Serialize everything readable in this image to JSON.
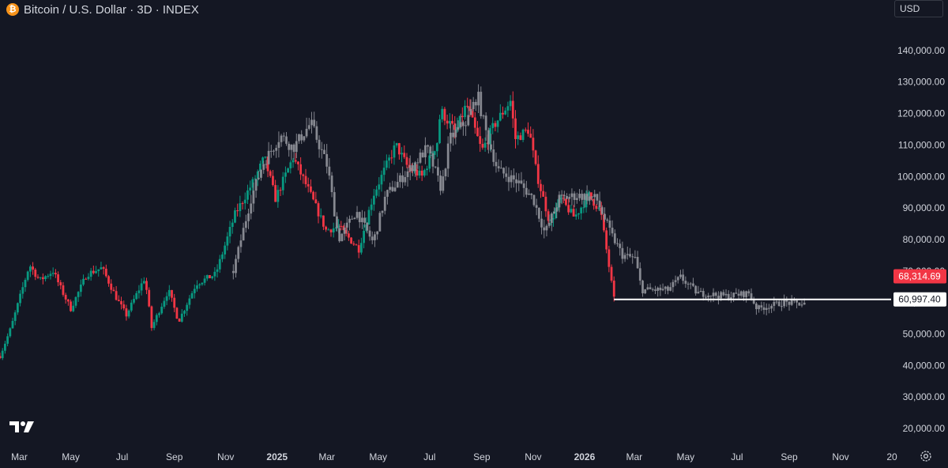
{
  "header": {
    "symbol_icon": "bitcoin-icon",
    "title": "Bitcoin / U.S. Dollar · 3D · INDEX"
  },
  "currency_selector": {
    "label": "USD"
  },
  "price_labels": {
    "current": {
      "label": "68,314.69",
      "value": 68314.69,
      "color": "#f23645"
    },
    "line": {
      "label": "60,997.40",
      "value": 60997.4,
      "color": "#ffffff"
    }
  },
  "colors": {
    "background": "#141723",
    "up": "#089981",
    "down": "#f23645",
    "overlay": "#8c8e96",
    "axis_text": "#d1d4dc"
  },
  "icons": {
    "logo": "tradingview-logo-icon",
    "settings": "gear-icon"
  },
  "chart_data": {
    "type": "candlestick",
    "title": "Bitcoin / U.S. Dollar · 3D · INDEX",
    "ylim": [
      15000,
      150000
    ],
    "y_ticks": [
      20000,
      30000,
      40000,
      50000,
      60000,
      70000,
      80000,
      90000,
      100000,
      110000,
      120000,
      130000,
      140000
    ],
    "y_tick_labels": [
      "20,000.00",
      "30,000.00",
      "40,000.00",
      "50,000.00",
      "60,000.00",
      "70,000.00",
      "80,000.00",
      "90,000.00",
      "100,000.00",
      "110,000.00",
      "120,000.00",
      "130,000.00",
      "140,000.00"
    ],
    "x_tick_labels": [
      "Mar",
      "May",
      "Jul",
      "Sep",
      "Nov",
      "2025",
      "Mar",
      "May",
      "Jul",
      "Sep",
      "Nov",
      "2026",
      "Mar",
      "May",
      "Jul",
      "Sep",
      "Nov",
      "20"
    ],
    "x_range": [
      "2024-02-07",
      "2026-12-31"
    ],
    "x_tick_dates": [
      "2024-03-01",
      "2024-05-01",
      "2024-07-01",
      "2024-09-01",
      "2024-11-01",
      "2025-01-01",
      "2025-03-01",
      "2025-05-01",
      "2025-07-01",
      "2025-09-01",
      "2025-11-01",
      "2026-01-01",
      "2026-03-01",
      "2026-05-01",
      "2026-07-01",
      "2026-09-01",
      "2026-11-01",
      "2027-01-01"
    ],
    "horizontal_line": {
      "from": "2026-02-05",
      "value": 60997.4
    },
    "series": [
      {
        "kind": "price",
        "start": "2024-02-07",
        "end": "2026-02-05",
        "points": [
          [
            "2024-02-07",
            43000
          ],
          [
            "2024-02-20",
            52000
          ],
          [
            "2024-03-13",
            72000
          ],
          [
            "2024-03-25",
            67000
          ],
          [
            "2024-04-10",
            70000
          ],
          [
            "2024-04-20",
            64000
          ],
          [
            "2024-05-01",
            58000
          ],
          [
            "2024-05-20",
            69000
          ],
          [
            "2024-06-07",
            71000
          ],
          [
            "2024-06-25",
            61000
          ],
          [
            "2024-07-06",
            56000
          ],
          [
            "2024-07-28",
            68000
          ],
          [
            "2024-08-05",
            52000
          ],
          [
            "2024-08-25",
            64000
          ],
          [
            "2024-09-06",
            54000
          ],
          [
            "2024-09-27",
            66000
          ],
          [
            "2024-10-20",
            69000
          ],
          [
            "2024-11-12",
            88000
          ],
          [
            "2024-12-05",
            99000
          ],
          [
            "2024-12-17",
            106000
          ],
          [
            "2024-12-30",
            93000
          ],
          [
            "2025-01-20",
            106000
          ],
          [
            "2025-02-05",
            97000
          ],
          [
            "2025-02-28",
            83000
          ],
          [
            "2025-03-15",
            84000
          ],
          [
            "2025-04-08",
            77000
          ],
          [
            "2025-04-25",
            94000
          ],
          [
            "2025-05-10",
            103000
          ],
          [
            "2025-05-22",
            110000
          ],
          [
            "2025-06-05",
            103000
          ],
          [
            "2025-06-22",
            100000
          ],
          [
            "2025-07-10",
            111000
          ],
          [
            "2025-07-14",
            121000
          ],
          [
            "2025-08-01",
            114000
          ],
          [
            "2025-08-14",
            123000
          ],
          [
            "2025-09-01",
            108000
          ],
          [
            "2025-09-15",
            116000
          ],
          [
            "2025-10-05",
            124000
          ],
          [
            "2025-10-11",
            112000
          ],
          [
            "2025-10-27",
            115000
          ],
          [
            "2025-11-05",
            101000
          ],
          [
            "2025-11-21",
            85000
          ],
          [
            "2025-12-03",
            93000
          ],
          [
            "2025-12-20",
            87000
          ],
          [
            "2026-01-06",
            94000
          ],
          [
            "2026-01-20",
            89000
          ],
          [
            "2026-02-05",
            61000
          ]
        ]
      },
      {
        "kind": "overlay",
        "start": "2024-11-10",
        "end": "2026-09-20",
        "points": [
          [
            "2024-11-10",
            70000
          ],
          [
            "2024-12-01",
            93000
          ],
          [
            "2024-12-15",
            104000
          ],
          [
            "2025-01-05",
            113000
          ],
          [
            "2025-01-20",
            109000
          ],
          [
            "2025-02-10",
            117000
          ],
          [
            "2025-03-02",
            103000
          ],
          [
            "2025-03-15",
            80000
          ],
          [
            "2025-04-05",
            89000
          ],
          [
            "2025-04-25",
            79000
          ],
          [
            "2025-05-10",
            94000
          ],
          [
            "2025-06-10",
            103000
          ],
          [
            "2025-06-28",
            109000
          ],
          [
            "2025-07-15",
            96000
          ],
          [
            "2025-07-25",
            112000
          ],
          [
            "2025-08-15",
            118000
          ],
          [
            "2025-08-27",
            126000
          ],
          [
            "2025-09-05",
            115000
          ],
          [
            "2025-09-20",
            102000
          ],
          [
            "2025-10-15",
            98000
          ],
          [
            "2025-11-01",
            93000
          ],
          [
            "2025-11-15",
            82000
          ],
          [
            "2025-12-02",
            93000
          ],
          [
            "2025-12-25",
            94000
          ],
          [
            "2026-01-15",
            93000
          ],
          [
            "2026-02-01",
            82000
          ],
          [
            "2026-02-15",
            75000
          ],
          [
            "2026-03-02",
            74000
          ],
          [
            "2026-03-10",
            64000
          ],
          [
            "2026-04-10",
            64000
          ],
          [
            "2026-04-25",
            68000
          ],
          [
            "2026-05-15",
            63000
          ],
          [
            "2026-06-20",
            62000
          ],
          [
            "2026-07-15",
            63000
          ],
          [
            "2026-07-25",
            58000
          ],
          [
            "2026-08-25",
            60000
          ],
          [
            "2026-09-20",
            59500
          ]
        ]
      }
    ]
  }
}
